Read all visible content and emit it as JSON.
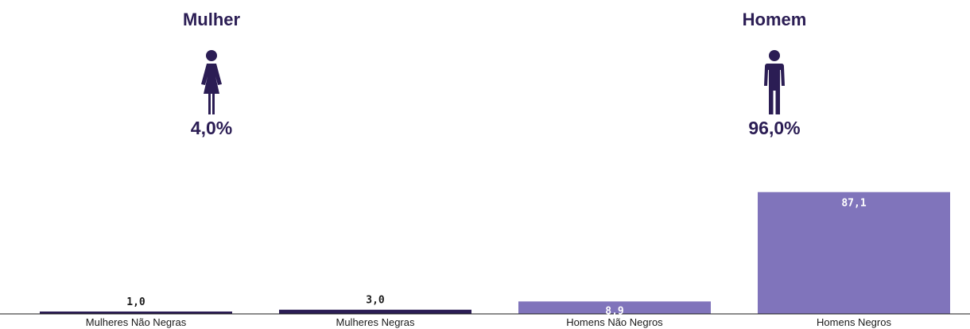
{
  "groups": [
    {
      "title": "Mulher",
      "percent": "4,0%",
      "icon": "woman-icon"
    },
    {
      "title": "Homem",
      "percent": "96,0%",
      "icon": "man-icon"
    }
  ],
  "chart_data": {
    "type": "bar",
    "categories": [
      "Mulheres Não Negras",
      "Mulheres Negras",
      "Homens Não Negros",
      "Homens Negros"
    ],
    "values": [
      1.0,
      3.0,
      8.9,
      87.1
    ],
    "value_labels": [
      "1,0",
      "3,0",
      "8,9",
      "87,1"
    ],
    "colors": [
      "#2b1d54",
      "#2b1d54",
      "#8074bb",
      "#8074bb"
    ],
    "ylim": [
      0,
      100
    ],
    "grid": false
  },
  "colors": {
    "dark": "#2b1d54",
    "light": "#8074bb"
  }
}
